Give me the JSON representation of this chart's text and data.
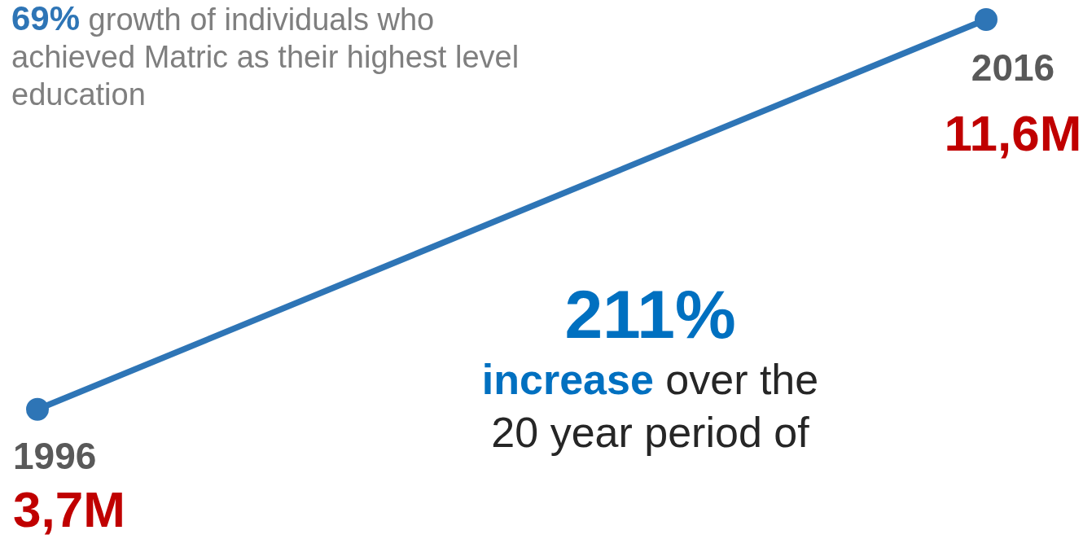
{
  "chart_data": {
    "type": "line",
    "categories": [
      null,
      null
    ],
    "series": [
      {
        "color": "#2e75b6",
        "values": [
          3.7,
          11.6
        ],
        "value_labels": [
          "3,7M",
          "11,6M"
        ]
      }
    ],
    "tick_labels": false,
    "marker": "circle",
    "line_style": "solid",
    "annotations": [
      "69% growth of individuals who achieved Matric as their highest level education",
      "211%",
      "increase over the 20 year period of",
      "1996",
      "2016"
    ]
  }
}
